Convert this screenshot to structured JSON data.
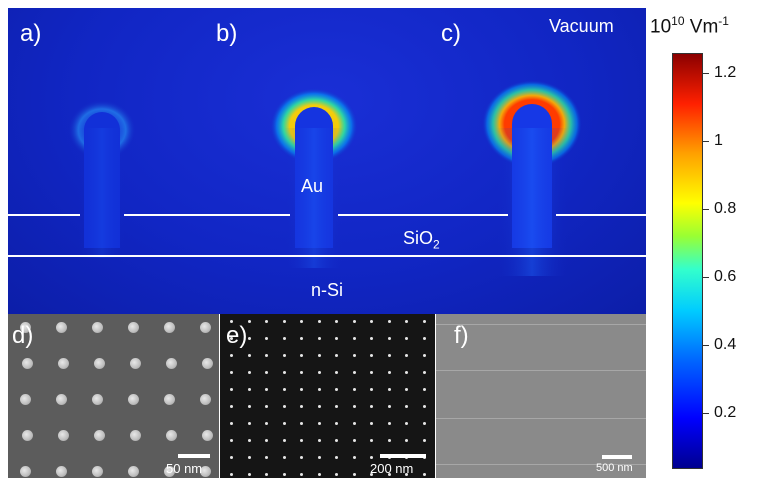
{
  "panels": {
    "a": "a)",
    "b": "b)",
    "c": "c)",
    "d": "d)",
    "e": "e)",
    "f": "f)"
  },
  "simulation": {
    "vacuum_label": "Vacuum",
    "au_label": "Au",
    "sio2_label": "SiO",
    "sio2_subscript": "2",
    "nsi_label": "n-Si"
  },
  "colorbar": {
    "title_prefix": "10",
    "title_exp": "10",
    "title_unit": " Vm",
    "title_unit_exp": "-1",
    "ticks": [
      "1.2",
      "1",
      "0.8",
      "0.6",
      "0.4",
      "0.2"
    ],
    "colors": {
      "low": "#00008f",
      "mid": "#33ffcc",
      "high": "#8b0000"
    }
  },
  "sem": {
    "d_scale": "50 nm",
    "e_scale": "200 nm",
    "f_scale": "500 nm"
  },
  "colors": {
    "sim_background": "#1126c4",
    "interface_line": "#ffffff"
  }
}
